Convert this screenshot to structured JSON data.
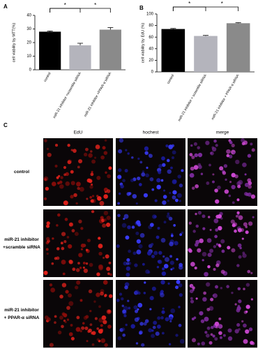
{
  "chart_data": [
    {
      "type": "bar",
      "panel": "A",
      "ylabel": "cell viability by MTT(%)",
      "categories": [
        "control",
        "miR-21 inhibitor +scramble siRNA",
        "miR-21 inhibitor +PPAR-α siRNA"
      ],
      "values": [
        28,
        18,
        29.5
      ],
      "errors": [
        0.5,
        1.5,
        1.5
      ],
      "colors": [
        "#000000",
        "#b4b4bc",
        "#8a8a8a"
      ],
      "ylim": [
        0,
        40
      ],
      "yticks": [
        0,
        10,
        20,
        30,
        40
      ],
      "annotations": [
        "*",
        "*"
      ]
    },
    {
      "type": "bar",
      "panel": "B",
      "ylabel": "cell viability by EdU (%)",
      "categories": [
        "control",
        "miR-21 inhibitor + scramble siRNA",
        "miR-21 inhibitor + PPAR-α siRNA"
      ],
      "values": [
        74,
        62,
        84
      ],
      "errors": [
        1,
        1,
        1
      ],
      "colors": [
        "#000000",
        "#b4b4bc",
        "#8a8a8a"
      ],
      "ylim": [
        0,
        100
      ],
      "yticks": [
        0,
        20,
        40,
        60,
        80,
        100
      ],
      "annotations": [
        "*",
        "*"
      ]
    }
  ],
  "panel_c": {
    "panel": "C",
    "columns": [
      "EdU",
      "hochest",
      "merge"
    ],
    "rows": [
      [
        "control"
      ],
      [
        "miR-21 inhibitor",
        "+scramble siRNA"
      ],
      [
        "miR-21 inhibitor",
        "+ PPAR-α siRNA"
      ]
    ]
  }
}
